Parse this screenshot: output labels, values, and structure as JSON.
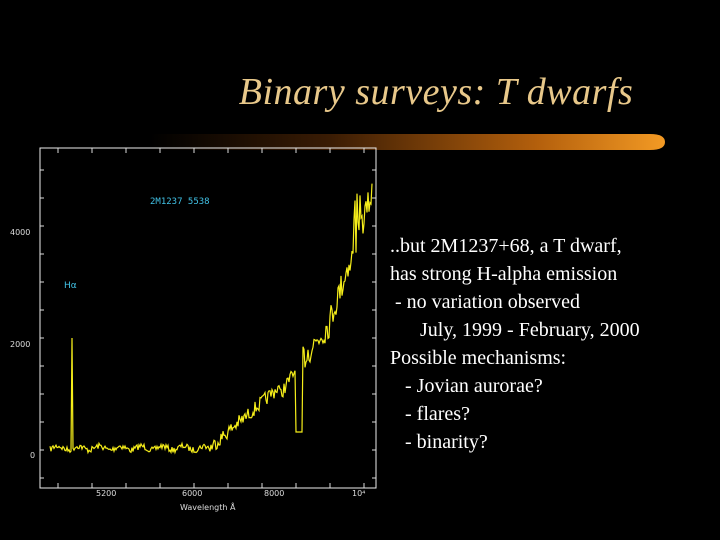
{
  "slide": {
    "title": "Binary surveys: T dwarfs",
    "bullets": [
      "..but 2M1237+68, a T dwarf,",
      "has strong H-alpha emission",
      " - no variation observed",
      "      July, 1999 - February, 2000",
      "",
      "Possible mechanisms:",
      "   - Jovian aurorae?",
      "   - flares?",
      "   - binarity?"
    ]
  },
  "spectrum": {
    "object_label": "2M1237  5538",
    "line_label": "Hα",
    "y_tick_labels": [
      "0",
      "2000",
      "4000"
    ],
    "x_tick_labels": [
      "5200",
      "6000",
      "8000",
      "10⁴"
    ],
    "x_axis_title": "Wavelength Å",
    "colors": {
      "trace": "#f6ee1a",
      "label_cyan": "#41c2e6",
      "title": "#e8c88a",
      "bar_orange": "#e07a12"
    }
  }
}
